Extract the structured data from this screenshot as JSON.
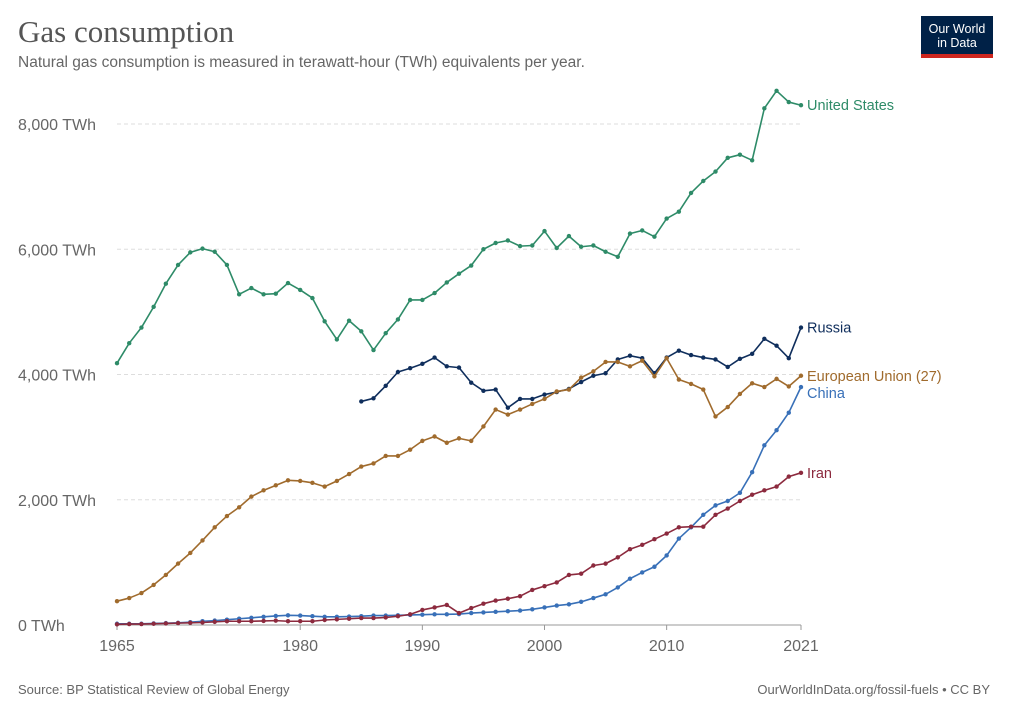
{
  "header": {
    "title": "Gas consumption",
    "subtitle": "Natural gas consumption is measured in terawatt-hour (TWh) equivalents per year."
  },
  "logo": {
    "line1": "Our World",
    "line2": "in Data",
    "bg": "#002147",
    "accent": "#ce261e"
  },
  "footer": {
    "source": "Source: BP Statistical Review of Global Energy",
    "credit": "OurWorldInData.org/fossil-fuels • CC BY"
  },
  "chart_data": {
    "type": "line",
    "title": "Gas consumption",
    "xlabel": "",
    "ylabel": "",
    "xlim": [
      1965,
      2021
    ],
    "ylim": [
      0,
      8000
    ],
    "grid": "horizontal dashed",
    "legend": "inline labels at line ends",
    "y_ticks": [
      {
        "value": 0,
        "label": "0 TWh"
      },
      {
        "value": 2000,
        "label": "2,000 TWh"
      },
      {
        "value": 4000,
        "label": "4,000 TWh"
      },
      {
        "value": 6000,
        "label": "6,000 TWh"
      },
      {
        "value": 8000,
        "label": "8,000 TWh"
      }
    ],
    "x_ticks": [
      {
        "value": 1965,
        "label": "1965"
      },
      {
        "value": 1980,
        "label": "1980"
      },
      {
        "value": 1990,
        "label": "1990"
      },
      {
        "value": 2000,
        "label": "2000"
      },
      {
        "value": 2010,
        "label": "2010"
      },
      {
        "value": 2021,
        "label": "2021"
      }
    ],
    "series": [
      {
        "name": "United States",
        "color": "#2e8b68",
        "start_year": 1965,
        "values": [
          4180,
          4500,
          4750,
          5080,
          5450,
          5750,
          5950,
          6010,
          5960,
          5750,
          5280,
          5380,
          5280,
          5290,
          5460,
          5350,
          5220,
          4850,
          4560,
          4860,
          4690,
          4390,
          4660,
          4880,
          5190,
          5190,
          5300,
          5470,
          5610,
          5740,
          6000,
          6100,
          6140,
          6050,
          6060,
          6290,
          6020,
          6210,
          6040,
          6060,
          5960,
          5880,
          6250,
          6300,
          6200,
          6490,
          6600,
          6900,
          7090,
          7240,
          7460,
          7510,
          7420,
          8250,
          8530,
          8350,
          8300
        ]
      },
      {
        "name": "Russia",
        "color": "#0f2e5c",
        "start_year": 1985,
        "values": [
          3570,
          3620,
          3820,
          4040,
          4100,
          4170,
          4270,
          4130,
          4110,
          3870,
          3740,
          3760,
          3470,
          3610,
          3610,
          3680,
          3720,
          3770,
          3880,
          3980,
          4020,
          4240,
          4300,
          4260,
          4020,
          4270,
          4380,
          4310,
          4270,
          4240,
          4120,
          4250,
          4330,
          4570,
          4460,
          4260,
          4750
        ]
      },
      {
        "name": "European Union (27)",
        "color": "#a06b2d",
        "start_year": 1965,
        "values": [
          380,
          430,
          510,
          640,
          800,
          980,
          1150,
          1350,
          1560,
          1740,
          1880,
          2050,
          2150,
          2230,
          2310,
          2300,
          2270,
          2210,
          2300,
          2410,
          2530,
          2580,
          2700,
          2700,
          2800,
          2940,
          3010,
          2910,
          2980,
          2940,
          3170,
          3440,
          3360,
          3440,
          3530,
          3610,
          3730,
          3760,
          3950,
          4050,
          4200,
          4200,
          4130,
          4220,
          3970,
          4260,
          3920,
          3850,
          3760,
          3330,
          3480,
          3690,
          3860,
          3800,
          3930,
          3810,
          3980
        ]
      },
      {
        "name": "China",
        "color": "#3870b8",
        "start_year": 1965,
        "values": [
          20,
          20,
          20,
          25,
          30,
          35,
          45,
          60,
          70,
          85,
          100,
          115,
          130,
          145,
          155,
          150,
          140,
          130,
          130,
          135,
          140,
          150,
          150,
          155,
          160,
          165,
          170,
          170,
          175,
          190,
          200,
          210,
          220,
          230,
          250,
          280,
          310,
          330,
          370,
          430,
          490,
          600,
          740,
          840,
          930,
          1110,
          1380,
          1560,
          1760,
          1910,
          1980,
          2110,
          2440,
          2870,
          3110,
          3390,
          3800
        ]
      },
      {
        "name": "Iran",
        "color": "#8c2a3e",
        "start_year": 1965,
        "values": [
          10,
          15,
          15,
          20,
          25,
          30,
          35,
          40,
          50,
          60,
          60,
          60,
          65,
          70,
          60,
          60,
          60,
          80,
          90,
          100,
          110,
          110,
          120,
          140,
          170,
          240,
          280,
          320,
          190,
          270,
          340,
          390,
          420,
          460,
          560,
          620,
          680,
          800,
          820,
          950,
          980,
          1080,
          1210,
          1280,
          1370,
          1460,
          1560,
          1570,
          1570,
          1760,
          1860,
          1980,
          2080,
          2150,
          2210,
          2370,
          2430
        ]
      }
    ]
  }
}
